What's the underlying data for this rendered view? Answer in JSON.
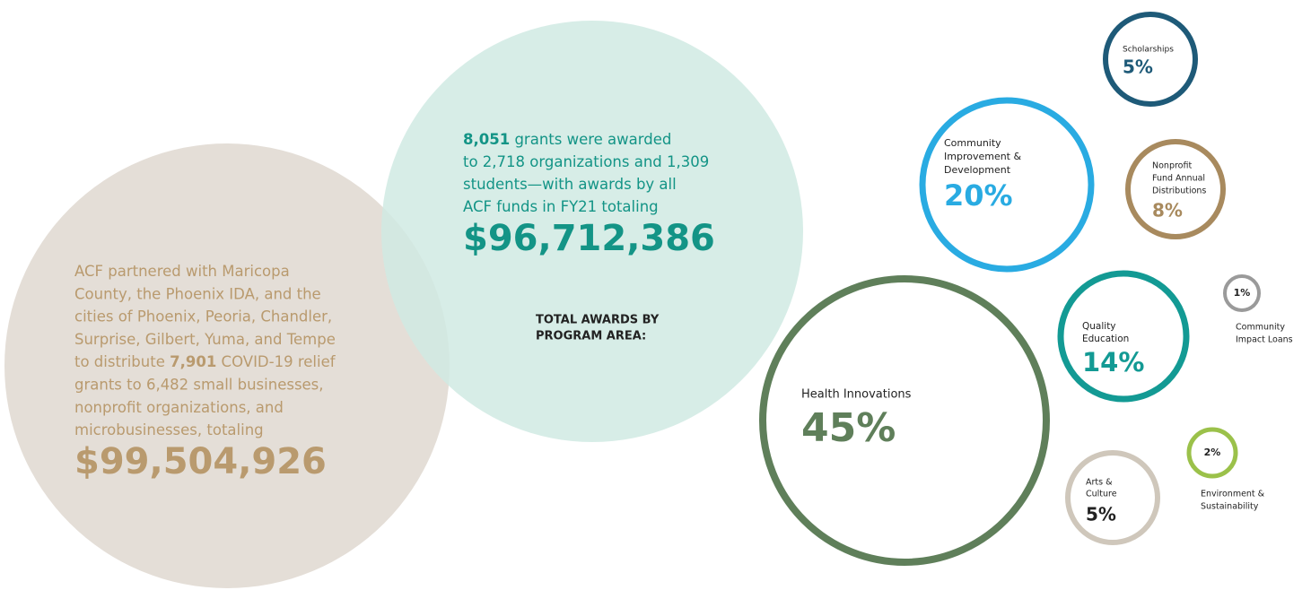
{
  "relief": {
    "lines": [
      [
        {
          "text": "ACF partnered with Maricopa"
        }
      ],
      [
        {
          "text": "County, the Phoenix IDA, and the"
        }
      ],
      [
        {
          "text": "cities of Phoenix, Peoria, Chandler,"
        }
      ],
      [
        {
          "text": "Surprise, Gilbert, Yuma, and Tempe"
        }
      ],
      [
        {
          "text": "to distribute "
        },
        {
          "text": "7,901",
          "bold": true
        },
        {
          "text": " COVID-19 relief"
        }
      ],
      [
        {
          "text": "grants to 6,482 small businesses,"
        }
      ],
      [
        {
          "text": "nonprofit organizations, and"
        }
      ],
      [
        {
          "text": "microbusinesses, totaling"
        }
      ]
    ],
    "total": "$99,504,926",
    "color": "#b99a6e",
    "fill": "#e4ded7"
  },
  "grants": {
    "lines": [
      [
        {
          "text": "8,051",
          "bold": true
        },
        {
          "text": " grants were awarded"
        }
      ],
      [
        {
          "text": "to 2,718 organizations and 1,309"
        }
      ],
      [
        {
          "text": "students—with awards by all"
        }
      ],
      [
        {
          "text": "ACF funds in FY21 totaling"
        }
      ]
    ],
    "total": "$96,712,386",
    "color": "#139486",
    "fill": "#d0eae3"
  },
  "program_heading": [
    "TOTAL AWARDS BY",
    "PROGRAM AREA:"
  ],
  "program_areas": [
    {
      "label": [
        "Scholarships"
      ],
      "percent": "5%",
      "color": "#1e5a78",
      "text_color": "#1e5a78"
    },
    {
      "label": [
        "Community",
        "Improvement &",
        "Development"
      ],
      "percent": "20%",
      "color": "#29abe2",
      "text_color": "#29abe2"
    },
    {
      "label": [
        "Nonprofit",
        "Fund Annual",
        "Distributions"
      ],
      "percent": "8%",
      "color": "#a88a5e",
      "text_color": "#a88a5e"
    },
    {
      "label": [
        "Community",
        "Impact Loans"
      ],
      "percent": "1%",
      "color": "#9a9a9a",
      "text_color": "#222222"
    },
    {
      "label": [
        "Quality",
        "Education"
      ],
      "percent": "14%",
      "color": "#139a94",
      "text_color": "#139a94"
    },
    {
      "label": [
        "Health Innovations"
      ],
      "percent": "45%",
      "color": "#5f7f5a",
      "text_color": "#5f7f5a"
    },
    {
      "label": [
        "Environment &",
        "Sustainability"
      ],
      "percent": "2%",
      "color": "#9bc14a",
      "text_color": "#222222"
    },
    {
      "label": [
        "Arts &",
        "Culture"
      ],
      "percent": "5%",
      "color": "#cfc7bb",
      "text_color": "#222222"
    }
  ]
}
